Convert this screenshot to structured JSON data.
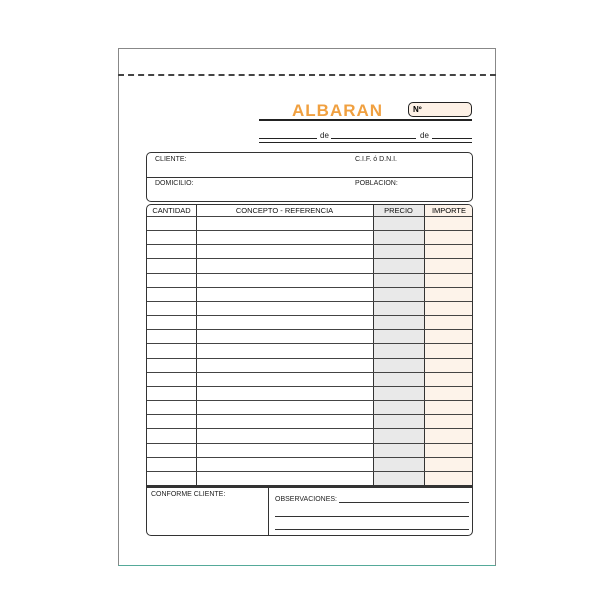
{
  "title": "ALBARAN",
  "number_label": "Nº",
  "date_sep_1": "de",
  "date_sep_2": "de",
  "client": {
    "cliente": "CLIENTE:",
    "cif": "C.I.F. ó D.N.I.",
    "domicilio": "DOMICILIO:",
    "poblacion": "POBLACION:"
  },
  "table": {
    "headers": [
      "CANTIDAD",
      "CONCEPTO - REFERENCIA",
      "PRECIO",
      "IMPORTE"
    ],
    "row_count": 19
  },
  "footer": {
    "conforme": "CONFORME CLIENTE:",
    "observaciones": "OBSERVACIONES:"
  },
  "colors": {
    "accent": "#f0a040",
    "precio_fill": "#e9e9e9",
    "importe_fill": "#fdf3ea"
  }
}
